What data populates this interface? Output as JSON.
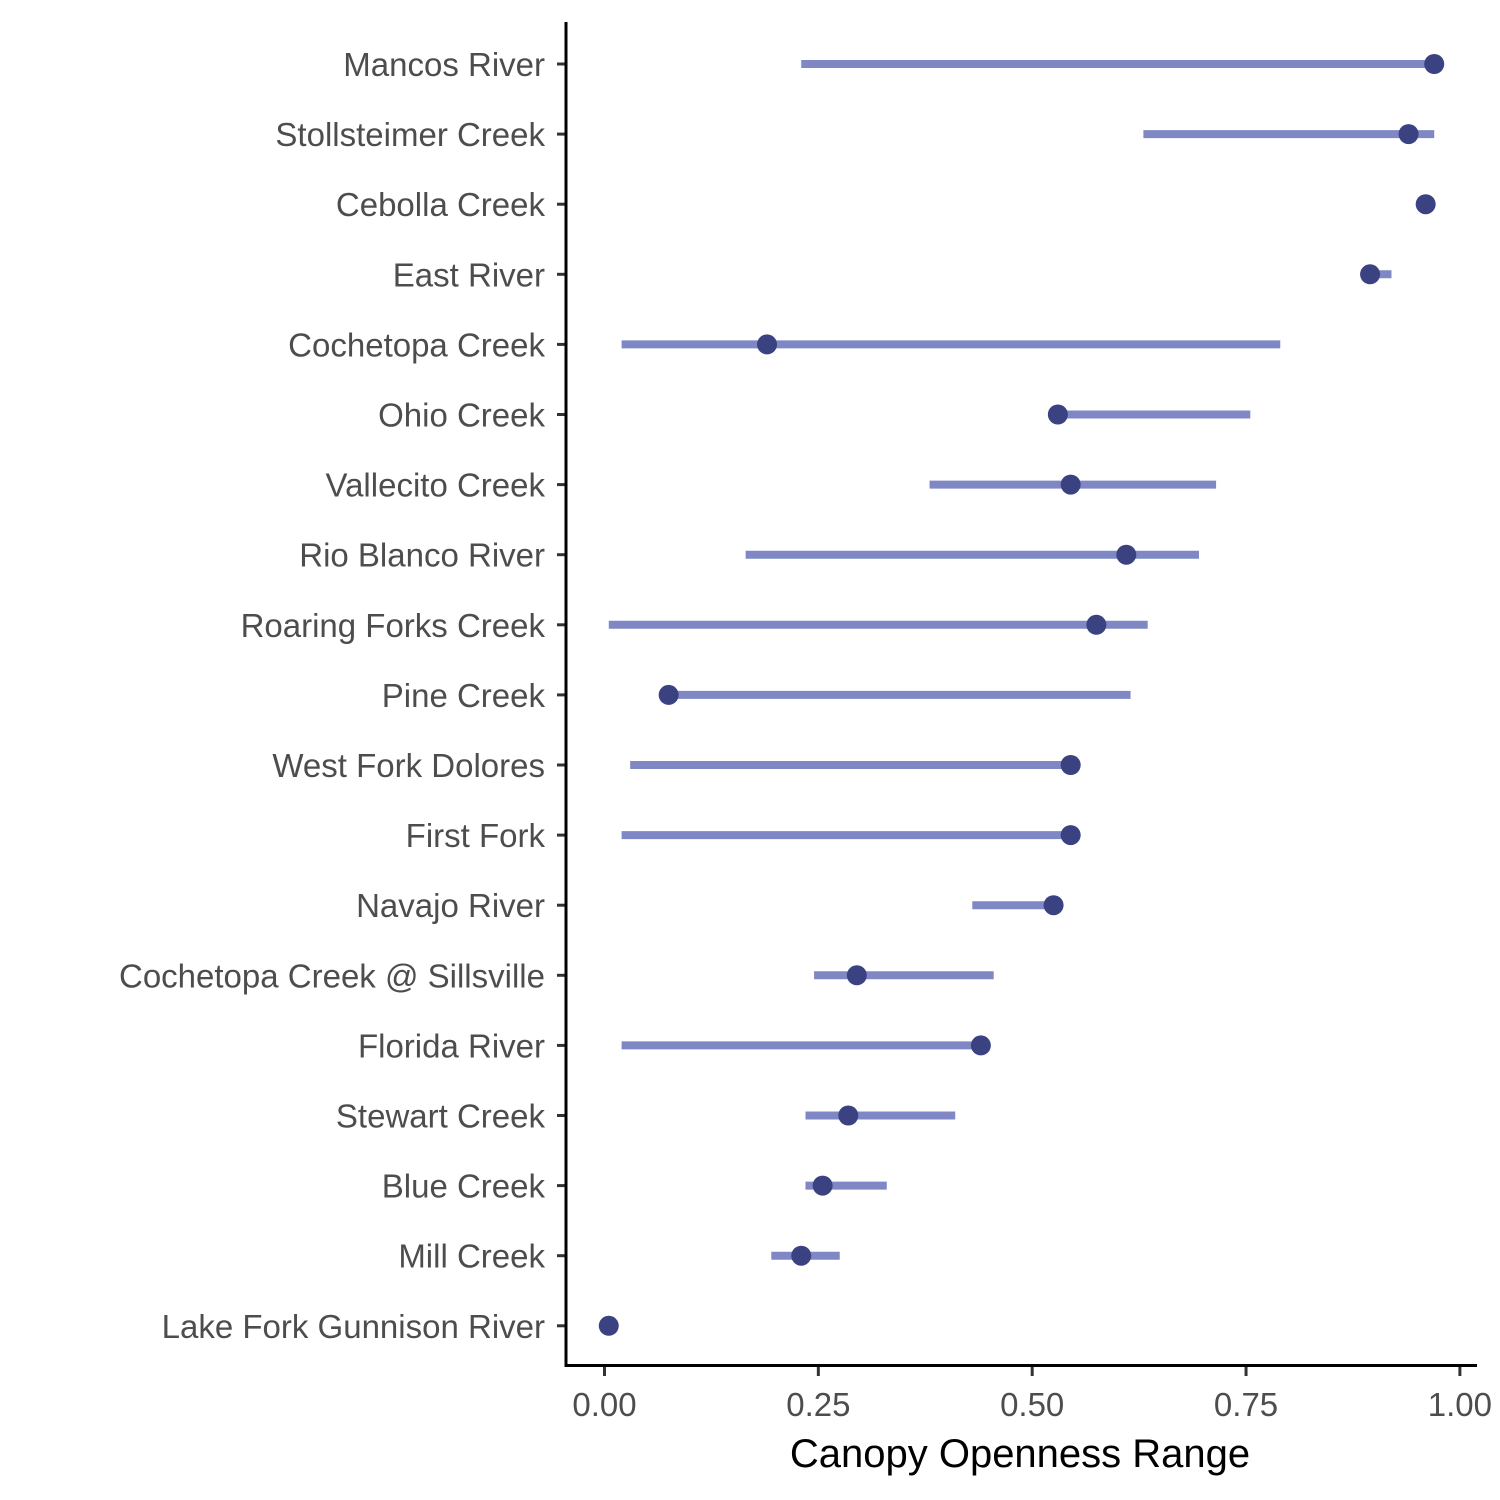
{
  "chart_data": {
    "type": "dot-range",
    "xlabel": "Canopy Openness Range",
    "ylabel": "",
    "xlim": [
      -0.045,
      1.02
    ],
    "x_ticks": [
      0,
      0.25,
      0.5,
      0.75,
      1.0
    ],
    "x_tick_labels": [
      "0.00",
      "0.25",
      "0.50",
      "0.75",
      "1.00"
    ],
    "grid": false,
    "legend": "none",
    "colors": {
      "range": "#7f88c4",
      "point": "#3b4282",
      "axis": "#000000"
    },
    "categories": [
      "Mancos River",
      "Stollsteimer Creek",
      "Cebolla Creek",
      "East River",
      "Cochetopa Creek",
      "Ohio Creek",
      "Vallecito Creek",
      "Rio Blanco River",
      "Roaring Forks Creek",
      "Pine Creek",
      "West Fork Dolores",
      "First Fork",
      "Navajo River",
      "Cochetopa Creek @ Sillsville",
      "Florida River",
      "Stewart Creek",
      "Blue Creek",
      "Mill Creek",
      "Lake Fork Gunnison River"
    ],
    "range_min": [
      0.23,
      0.63,
      0.96,
      0.89,
      0.02,
      0.53,
      0.38,
      0.165,
      0.005,
      0.075,
      0.03,
      0.02,
      0.43,
      0.245,
      0.02,
      0.235,
      0.235,
      0.195,
      0.005
    ],
    "range_max": [
      0.97,
      0.97,
      0.96,
      0.92,
      0.79,
      0.755,
      0.715,
      0.695,
      0.635,
      0.615,
      0.545,
      0.545,
      0.52,
      0.455,
      0.44,
      0.41,
      0.33,
      0.275,
      0.005
    ],
    "values": [
      0.97,
      0.94,
      0.96,
      0.895,
      0.19,
      0.53,
      0.545,
      0.61,
      0.575,
      0.075,
      0.545,
      0.545,
      0.525,
      0.295,
      0.44,
      0.285,
      0.255,
      0.23,
      0.005
    ]
  }
}
